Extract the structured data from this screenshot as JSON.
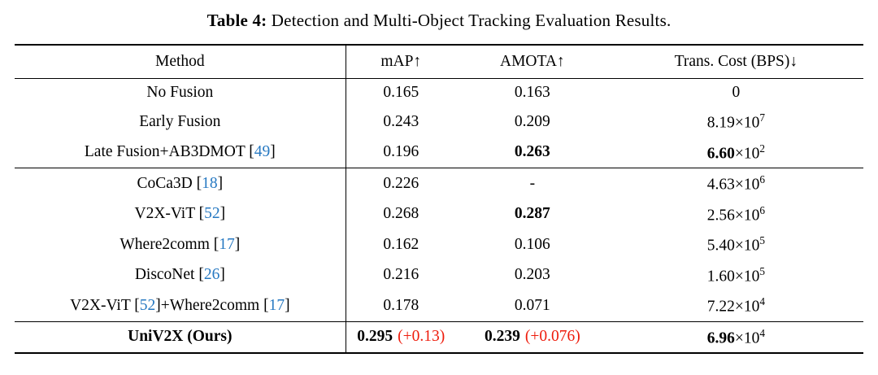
{
  "colors": {
    "cite": "#2779c2",
    "delta": "#ee1c0c",
    "text": "#000000",
    "rule": "#000000"
  },
  "caption": {
    "label": "Table 4:",
    "text": " Detection and Multi-Object Tracking Evaluation Results."
  },
  "table": {
    "headers": [
      "Method",
      "mAP↑",
      "AMOTA↑",
      "Trans. Cost (BPS)↓"
    ],
    "groups": [
      {
        "rows": [
          {
            "method": [
              {
                "text": "No Fusion"
              }
            ],
            "map": {
              "value": "0.165"
            },
            "amota": {
              "value": "0.163"
            },
            "cost": {
              "plain": "0"
            }
          },
          {
            "method": [
              {
                "text": "Early Fusion"
              }
            ],
            "map": {
              "value": "0.243"
            },
            "amota": {
              "value": "0.209"
            },
            "cost": {
              "mantissa": "8.19",
              "exp": "7"
            }
          },
          {
            "method": [
              {
                "text": "Late Fusion+AB3DMOT "
              },
              {
                "cite": "49"
              }
            ],
            "map": {
              "value": "0.196"
            },
            "amota": {
              "value": "0.263",
              "bold": true
            },
            "cost": {
              "mantissa": "6.60",
              "exp": "2",
              "bold": true
            }
          }
        ]
      },
      {
        "rows": [
          {
            "method": [
              {
                "text": "CoCa3D "
              },
              {
                "cite": "18"
              }
            ],
            "map": {
              "value": "0.226"
            },
            "amota": {
              "value": "-"
            },
            "cost": {
              "mantissa": "4.63",
              "exp": "6"
            }
          },
          {
            "method": [
              {
                "text": "V2X-ViT "
              },
              {
                "cite": "52"
              }
            ],
            "map": {
              "value": "0.268"
            },
            "amota": {
              "value": "0.287",
              "bold": true
            },
            "cost": {
              "mantissa": "2.56",
              "exp": "6"
            }
          },
          {
            "method": [
              {
                "text": "Where2comm "
              },
              {
                "cite": "17"
              }
            ],
            "map": {
              "value": "0.162"
            },
            "amota": {
              "value": "0.106"
            },
            "cost": {
              "mantissa": "5.40",
              "exp": "5"
            }
          },
          {
            "method": [
              {
                "text": "DiscoNet "
              },
              {
                "cite": "26"
              }
            ],
            "map": {
              "value": "0.216"
            },
            "amota": {
              "value": "0.203"
            },
            "cost": {
              "mantissa": "1.60",
              "exp": "5"
            }
          },
          {
            "method": [
              {
                "text": "V2X-ViT "
              },
              {
                "cite": "52"
              },
              {
                "text": "+Where2comm "
              },
              {
                "cite": "17"
              }
            ],
            "map": {
              "value": "0.178"
            },
            "amota": {
              "value": "0.071"
            },
            "cost": {
              "mantissa": "7.22",
              "exp": "4"
            }
          }
        ]
      },
      {
        "rows": [
          {
            "method": [
              {
                "text": "UniV2X (Ours)",
                "bold": true
              }
            ],
            "map": {
              "value": "0.295",
              "bold": true,
              "delta": "(+0.13)"
            },
            "amota": {
              "value": "0.239",
              "bold": true,
              "delta": "(+0.076)"
            },
            "cost": {
              "mantissa": "6.96",
              "exp": "4",
              "bold": true
            }
          }
        ]
      }
    ]
  }
}
